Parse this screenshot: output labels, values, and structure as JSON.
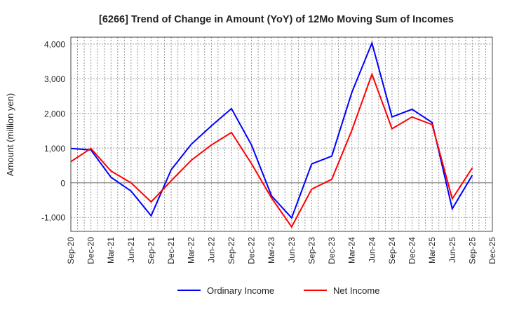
{
  "chart_data": {
    "type": "line",
    "title": "[6266]  Trend of Change in Amount (YoY) of 12Mo Moving Sum of Incomes",
    "xlabel": "",
    "ylabel": "Amount (million yen)",
    "ylim": [
      -1400,
      4200
    ],
    "yticks": [
      -1000,
      0,
      1000,
      2000,
      3000,
      4000
    ],
    "ytick_labels": [
      "-1,000",
      "0",
      "1,000",
      "2,000",
      "3,000",
      "4,000"
    ],
    "grid": true,
    "legend_position": "bottom-center",
    "categories": [
      "Sep-20",
      "Dec-20",
      "Mar-21",
      "Jun-21",
      "Sep-21",
      "Dec-21",
      "Mar-22",
      "Jun-22",
      "Sep-22",
      "Dec-22",
      "Mar-23",
      "Jun-23",
      "Sep-23",
      "Dec-23",
      "Mar-24",
      "Jun-24",
      "Sep-24",
      "Dec-24",
      "Mar-25",
      "Jun-25",
      "Sep-25",
      "Dec-25"
    ],
    "series": [
      {
        "name": "Ordinary Income",
        "color": "#0000ff",
        "values": [
          990,
          950,
          160,
          -240,
          -950,
          380,
          1110,
          1640,
          2140,
          1090,
          -380,
          -1010,
          545,
          770,
          2610,
          4030,
          1900,
          2120,
          1740,
          -750,
          220,
          null
        ]
      },
      {
        "name": "Net Income",
        "color": "#ff0000",
        "values": [
          610,
          990,
          340,
          0,
          -550,
          60,
          650,
          1090,
          1450,
          550,
          -440,
          -1270,
          -180,
          100,
          1520,
          3130,
          1560,
          1900,
          1680,
          -460,
          430,
          null
        ]
      }
    ]
  }
}
